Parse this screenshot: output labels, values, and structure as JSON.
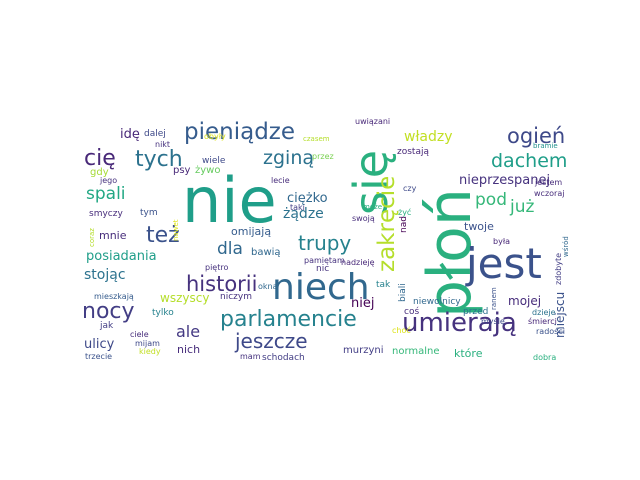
{
  "words": [
    {
      "text": "nie",
      "color": "#1f9e89"
    },
    {
      "text": "płoń",
      "color": "#2ab07f"
    },
    {
      "text": "się",
      "color": "#2ab07f"
    },
    {
      "text": "jest",
      "color": "#3b528b"
    },
    {
      "text": "niech",
      "color": "#31688e"
    },
    {
      "text": "umierają",
      "color": "#46327e"
    },
    {
      "text": "zakręcie",
      "color": "#b5de2b"
    },
    {
      "text": "parlamencie",
      "color": "#26828e"
    },
    {
      "text": "historii",
      "color": "#46327e"
    },
    {
      "text": "pieniądze",
      "color": "#365c8d"
    },
    {
      "text": "ogień",
      "color": "#3e4989"
    },
    {
      "text": "cię",
      "color": "#482878"
    },
    {
      "text": "tych",
      "color": "#2c728e"
    },
    {
      "text": "zginą",
      "color": "#2c728e"
    },
    {
      "text": "dachem",
      "color": "#1f9e89"
    },
    {
      "text": "też",
      "color": "#3b528b"
    },
    {
      "text": "nocy",
      "color": "#433e85"
    },
    {
      "text": "trupy",
      "color": "#26828e"
    },
    {
      "text": "jeszcze",
      "color": "#3e4989"
    },
    {
      "text": "ale",
      "color": "#443983"
    },
    {
      "text": "już",
      "color": "#35b779"
    },
    {
      "text": "pod",
      "color": "#35b779"
    },
    {
      "text": "dla",
      "color": "#31688e"
    },
    {
      "text": "spali",
      "color": "#22a884"
    },
    {
      "text": "władzy",
      "color": "#c2df23"
    },
    {
      "text": "idę",
      "color": "#482878"
    },
    {
      "text": "dalej",
      "color": "#3e4989"
    },
    {
      "text": "nikt",
      "color": "#46327e"
    },
    {
      "text": "psy",
      "color": "#482878"
    },
    {
      "text": "żywo",
      "color": "#65cb5e"
    },
    {
      "text": "wiele",
      "color": "#3e4989"
    },
    {
      "text": "gdy",
      "color": "#a5db36"
    },
    {
      "text": "jego",
      "color": "#46327e"
    },
    {
      "text": "przez",
      "color": "#7ad151"
    },
    {
      "text": "lecie",
      "color": "#472d7b"
    },
    {
      "text": "taki",
      "color": "#433e85"
    },
    {
      "text": "ciężko",
      "color": "#31688e"
    },
    {
      "text": "żądze",
      "color": "#2c728e"
    },
    {
      "text": "posiadania",
      "color": "#1f9e89"
    },
    {
      "text": "mnie",
      "color": "#472d7b"
    },
    {
      "text": "stojąc",
      "color": "#2c728e"
    },
    {
      "text": "omijają",
      "color": "#365c8d"
    },
    {
      "text": "bawią",
      "color": "#31688e"
    },
    {
      "text": "swoją",
      "color": "#472d7b"
    },
    {
      "text": "pamiętam",
      "color": "#46327e"
    },
    {
      "text": "smyczy",
      "color": "#472d7b"
    },
    {
      "text": "tym",
      "color": "#3b528b"
    },
    {
      "text": "piętro",
      "color": "#46327e"
    },
    {
      "text": "nic",
      "color": "#46327e"
    },
    {
      "text": "nadzieję",
      "color": "#482878"
    },
    {
      "text": "wszyscy",
      "color": "#b5de2b"
    },
    {
      "text": "niczym",
      "color": "#46327e"
    },
    {
      "text": "mieszkają",
      "color": "#365c8d"
    },
    {
      "text": "tylko",
      "color": "#26828e"
    },
    {
      "text": "jak",
      "color": "#433e85"
    },
    {
      "text": "ciele",
      "color": "#472d7b"
    },
    {
      "text": "mijam",
      "color": "#3e4989"
    },
    {
      "text": "ulicy",
      "color": "#3e4989"
    },
    {
      "text": "nich",
      "color": "#472d7b"
    },
    {
      "text": "kiedy",
      "color": "#c2df23"
    },
    {
      "text": "trzecie",
      "color": "#3b528b"
    },
    {
      "text": "mam",
      "color": "#46327e"
    },
    {
      "text": "schodach",
      "color": "#433e85"
    },
    {
      "text": "murzyni",
      "color": "#433e85"
    },
    {
      "text": "normalne",
      "color": "#35b779"
    },
    {
      "text": "które",
      "color": "#2ab07f"
    },
    {
      "text": "dobra",
      "color": "#2ab07f"
    },
    {
      "text": "nieprzespanej",
      "color": "#46327e"
    },
    {
      "text": "zostają",
      "color": "#482878"
    },
    {
      "text": "uwiązani",
      "color": "#482878"
    },
    {
      "text": "bramie",
      "color": "#21918c"
    },
    {
      "text": "wczoraj",
      "color": "#472d7b"
    },
    {
      "text": "jestem",
      "color": "#472d7b"
    },
    {
      "text": "dzieje",
      "color": "#2c728e"
    },
    {
      "text": "śmierci",
      "color": "#482878"
    },
    {
      "text": "radości",
      "color": "#3b528b"
    },
    {
      "text": "przed",
      "color": "#2c728e"
    },
    {
      "text": "myślę",
      "color": "#3e4989"
    },
    {
      "text": "niewolnicy",
      "color": "#31688e"
    },
    {
      "text": "coś",
      "color": "#472d7b"
    },
    {
      "text": "twoje",
      "color": "#3b528b"
    },
    {
      "text": "była",
      "color": "#482878"
    },
    {
      "text": "niej",
      "color": "#440154"
    },
    {
      "text": "mojej",
      "color": "#472d7b"
    },
    {
      "text": "czy",
      "color": "#3e4989"
    },
    {
      "text": "tak",
      "color": "#26828e"
    },
    {
      "text": "miejscu",
      "color": "#3b528b"
    },
    {
      "text": "nad",
      "color": "#440154"
    },
    {
      "text": "biali",
      "color": "#31688e"
    },
    {
      "text": "ranem",
      "color": "#3b528b"
    },
    {
      "text": "zdobyte",
      "color": "#433e85"
    },
    {
      "text": "wśród",
      "color": "#31688e"
    },
    {
      "text": "żyć",
      "color": "#2ab07f"
    },
    {
      "text": "okna",
      "color": "#31688e"
    },
    {
      "text": "może",
      "color": "#2ab07f"
    },
    {
      "text": "choć",
      "color": "#dde318"
    },
    {
      "text": "obyły",
      "color": "#dde318"
    },
    {
      "text": "czasem",
      "color": "#b5de2b"
    },
    {
      "text": "nawet",
      "color": "#dde318"
    },
    {
      "text": "coraz",
      "color": "#b5de2b"
    }
  ]
}
